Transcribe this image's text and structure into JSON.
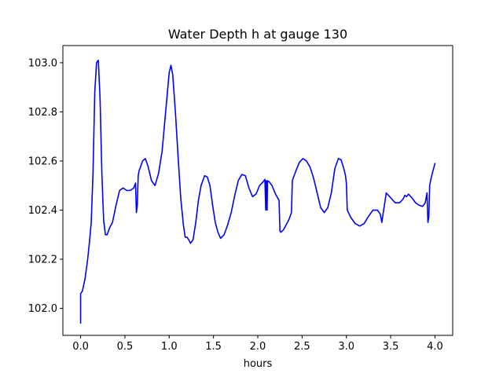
{
  "chart_data": {
    "type": "line",
    "title": "Water Depth h at gauge 130",
    "xlabel": "hours",
    "ylabel": "",
    "xlim": [
      -0.2,
      4.2
    ],
    "ylim": [
      101.89,
      103.07
    ],
    "xticks": [
      0.0,
      0.5,
      1.0,
      1.5,
      2.0,
      2.5,
      3.0,
      3.5,
      4.0
    ],
    "xtick_labels": [
      "0.0",
      "0.5",
      "1.0",
      "1.5",
      "2.0",
      "2.5",
      "3.0",
      "3.5",
      "4.0"
    ],
    "yticks": [
      102.0,
      102.2,
      102.4,
      102.6,
      102.8,
      103.0
    ],
    "ytick_labels": [
      "102.0",
      "102.2",
      "102.4",
      "102.6",
      "102.8",
      "103.0"
    ],
    "grid": false,
    "series": [
      {
        "color": "#0000ff",
        "x": [
          0.0,
          0.0,
          0.02,
          0.05,
          0.08,
          0.1,
          0.12,
          0.14,
          0.16,
          0.18,
          0.2,
          0.22,
          0.24,
          0.26,
          0.28,
          0.3,
          0.33,
          0.36,
          0.4,
          0.44,
          0.48,
          0.52,
          0.56,
          0.6,
          0.62,
          0.63,
          0.64,
          0.65,
          0.66,
          0.7,
          0.73,
          0.76,
          0.8,
          0.84,
          0.88,
          0.92,
          0.96,
          1.0,
          1.02,
          1.04,
          1.07,
          1.1,
          1.13,
          1.16,
          1.18,
          1.2,
          1.22,
          1.24,
          1.27,
          1.3,
          1.33,
          1.36,
          1.4,
          1.43,
          1.46,
          1.49,
          1.52,
          1.55,
          1.58,
          1.62,
          1.66,
          1.7,
          1.74,
          1.78,
          1.82,
          1.86,
          1.9,
          1.94,
          1.98,
          2.02,
          2.06,
          2.08,
          2.09,
          2.095,
          2.1,
          2.105,
          2.11,
          2.13,
          2.16,
          2.2,
          2.24,
          2.25,
          2.26,
          2.29,
          2.32,
          2.35,
          2.38,
          2.39,
          2.4,
          2.43,
          2.47,
          2.51,
          2.55,
          2.59,
          2.63,
          2.67,
          2.71,
          2.75,
          2.79,
          2.83,
          2.87,
          2.91,
          2.94,
          2.97,
          2.99,
          3.0,
          3.01,
          3.05,
          3.1,
          3.15,
          3.2,
          3.25,
          3.3,
          3.35,
          3.38,
          3.39,
          3.4,
          3.45,
          3.5,
          3.55,
          3.6,
          3.64,
          3.66,
          3.68,
          3.7,
          3.74,
          3.78,
          3.82,
          3.86,
          3.89,
          3.9,
          3.91,
          3.92,
          3.93,
          3.94,
          3.95,
          3.97,
          4.0
        ],
        "y": [
          101.94,
          102.06,
          102.07,
          102.12,
          102.2,
          102.27,
          102.35,
          102.55,
          102.88,
          103.0,
          103.01,
          102.85,
          102.55,
          102.36,
          102.3,
          102.3,
          102.33,
          102.35,
          102.42,
          102.48,
          102.49,
          102.48,
          102.48,
          102.49,
          102.51,
          102.39,
          102.42,
          102.54,
          102.56,
          102.6,
          102.61,
          102.58,
          102.52,
          102.5,
          102.55,
          102.64,
          102.8,
          102.96,
          102.99,
          102.95,
          102.8,
          102.62,
          102.45,
          102.34,
          102.29,
          102.29,
          102.28,
          102.265,
          102.28,
          102.35,
          102.44,
          102.5,
          102.54,
          102.535,
          102.5,
          102.42,
          102.35,
          102.31,
          102.285,
          102.3,
          102.34,
          102.39,
          102.46,
          102.52,
          102.545,
          102.54,
          102.49,
          102.455,
          102.465,
          102.5,
          102.515,
          102.525,
          102.4,
          102.52,
          102.51,
          102.4,
          102.52,
          102.515,
          102.5,
          102.465,
          102.44,
          102.315,
          102.31,
          102.32,
          102.34,
          102.36,
          102.39,
          102.52,
          102.53,
          102.56,
          102.595,
          102.61,
          102.6,
          102.575,
          102.53,
          102.47,
          102.41,
          102.39,
          102.41,
          102.47,
          102.57,
          102.61,
          102.605,
          102.57,
          102.54,
          102.51,
          102.4,
          102.37,
          102.345,
          102.335,
          102.345,
          102.375,
          102.4,
          102.4,
          102.385,
          102.37,
          102.35,
          102.47,
          102.45,
          102.43,
          102.43,
          102.445,
          102.46,
          102.455,
          102.465,
          102.45,
          102.43,
          102.42,
          102.415,
          102.43,
          102.45,
          102.47,
          102.35,
          102.37,
          102.5,
          102.52,
          102.55,
          102.59
        ]
      }
    ]
  }
}
